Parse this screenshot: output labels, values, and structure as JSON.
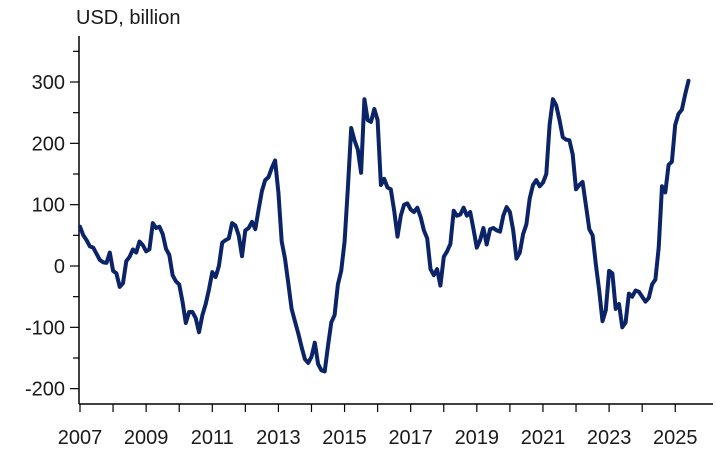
{
  "chart_data": {
    "type": "line",
    "ylabel": "USD, billion",
    "xlabel": "",
    "xlim": [
      2007.0,
      2025.9
    ],
    "ylim": [
      -225,
      375
    ],
    "xticks": [
      2007,
      2009,
      2011,
      2013,
      2015,
      2017,
      2019,
      2021,
      2023,
      2025
    ],
    "xtick_labels": [
      "2007",
      "2009",
      "2011",
      "2013",
      "2015",
      "2017",
      "2019",
      "2021",
      "2023",
      "2025"
    ],
    "yticks": [
      -200,
      -100,
      0,
      100,
      200,
      300
    ],
    "ytick_labels": [
      "-200",
      "-100",
      "0",
      "100",
      "200",
      "300"
    ],
    "grid": false,
    "line_color": "#0b2468",
    "series": [
      {
        "name": "",
        "points": [
          [
            2007.0,
            64
          ],
          [
            2007.1,
            50
          ],
          [
            2007.2,
            42
          ],
          [
            2007.3,
            32
          ],
          [
            2007.4,
            30
          ],
          [
            2007.5,
            20
          ],
          [
            2007.6,
            10
          ],
          [
            2007.7,
            6
          ],
          [
            2007.8,
            5
          ],
          [
            2007.9,
            22
          ],
          [
            2008.0,
            -8
          ],
          [
            2008.1,
            -12
          ],
          [
            2008.2,
            -34
          ],
          [
            2008.3,
            -28
          ],
          [
            2008.4,
            8
          ],
          [
            2008.5,
            15
          ],
          [
            2008.6,
            27
          ],
          [
            2008.7,
            22
          ],
          [
            2008.8,
            40
          ],
          [
            2008.9,
            34
          ],
          [
            2009.0,
            24
          ],
          [
            2009.1,
            27
          ],
          [
            2009.2,
            70
          ],
          [
            2009.3,
            62
          ],
          [
            2009.4,
            64
          ],
          [
            2009.5,
            52
          ],
          [
            2009.6,
            28
          ],
          [
            2009.7,
            18
          ],
          [
            2009.8,
            -15
          ],
          [
            2009.9,
            -25
          ],
          [
            2010.0,
            -30
          ],
          [
            2010.1,
            -58
          ],
          [
            2010.2,
            -93
          ],
          [
            2010.3,
            -75
          ],
          [
            2010.4,
            -75
          ],
          [
            2010.5,
            -85
          ],
          [
            2010.6,
            -108
          ],
          [
            2010.7,
            -80
          ],
          [
            2010.8,
            -62
          ],
          [
            2010.9,
            -38
          ],
          [
            2011.0,
            -10
          ],
          [
            2011.1,
            -18
          ],
          [
            2011.2,
            0
          ],
          [
            2011.3,
            38
          ],
          [
            2011.4,
            42
          ],
          [
            2011.5,
            45
          ],
          [
            2011.6,
            70
          ],
          [
            2011.7,
            66
          ],
          [
            2011.8,
            50
          ],
          [
            2011.9,
            16
          ],
          [
            2012.0,
            58
          ],
          [
            2012.1,
            62
          ],
          [
            2012.2,
            72
          ],
          [
            2012.3,
            60
          ],
          [
            2012.4,
            92
          ],
          [
            2012.5,
            122
          ],
          [
            2012.6,
            140
          ],
          [
            2012.7,
            145
          ],
          [
            2012.8,
            160
          ],
          [
            2012.9,
            172
          ],
          [
            2013.0,
            120
          ],
          [
            2013.1,
            40
          ],
          [
            2013.2,
            12
          ],
          [
            2013.3,
            -28
          ],
          [
            2013.4,
            -70
          ],
          [
            2013.5,
            -90
          ],
          [
            2013.6,
            -110
          ],
          [
            2013.7,
            -132
          ],
          [
            2013.8,
            -152
          ],
          [
            2013.9,
            -158
          ],
          [
            2014.0,
            -148
          ],
          [
            2014.1,
            -125
          ],
          [
            2014.2,
            -160
          ],
          [
            2014.3,
            -170
          ],
          [
            2014.4,
            -172
          ],
          [
            2014.5,
            -130
          ],
          [
            2014.6,
            -92
          ],
          [
            2014.7,
            -80
          ],
          [
            2014.8,
            -30
          ],
          [
            2014.9,
            -8
          ],
          [
            2015.0,
            40
          ],
          [
            2015.1,
            128
          ],
          [
            2015.2,
            225
          ],
          [
            2015.3,
            205
          ],
          [
            2015.4,
            190
          ],
          [
            2015.5,
            152
          ],
          [
            2015.6,
            272
          ],
          [
            2015.7,
            238
          ],
          [
            2015.8,
            235
          ],
          [
            2015.9,
            256
          ],
          [
            2016.0,
            238
          ],
          [
            2016.1,
            132
          ],
          [
            2016.2,
            142
          ],
          [
            2016.3,
            128
          ],
          [
            2016.4,
            125
          ],
          [
            2016.5,
            90
          ],
          [
            2016.6,
            48
          ],
          [
            2016.7,
            82
          ],
          [
            2016.8,
            100
          ],
          [
            2016.9,
            102
          ],
          [
            2017.0,
            92
          ],
          [
            2017.1,
            88
          ],
          [
            2017.2,
            95
          ],
          [
            2017.3,
            80
          ],
          [
            2017.4,
            58
          ],
          [
            2017.5,
            45
          ],
          [
            2017.6,
            -5
          ],
          [
            2017.7,
            -15
          ],
          [
            2017.8,
            -5
          ],
          [
            2017.9,
            -32
          ],
          [
            2018.0,
            15
          ],
          [
            2018.1,
            24
          ],
          [
            2018.2,
            36
          ],
          [
            2018.3,
            90
          ],
          [
            2018.4,
            82
          ],
          [
            2018.5,
            84
          ],
          [
            2018.6,
            95
          ],
          [
            2018.7,
            82
          ],
          [
            2018.8,
            88
          ],
          [
            2018.9,
            60
          ],
          [
            2019.0,
            30
          ],
          [
            2019.1,
            42
          ],
          [
            2019.2,
            62
          ],
          [
            2019.3,
            35
          ],
          [
            2019.4,
            60
          ],
          [
            2019.5,
            62
          ],
          [
            2019.6,
            58
          ],
          [
            2019.7,
            56
          ],
          [
            2019.8,
            82
          ],
          [
            2019.9,
            96
          ],
          [
            2020.0,
            88
          ],
          [
            2020.1,
            58
          ],
          [
            2020.2,
            12
          ],
          [
            2020.3,
            22
          ],
          [
            2020.4,
            52
          ],
          [
            2020.5,
            68
          ],
          [
            2020.6,
            110
          ],
          [
            2020.7,
            132
          ],
          [
            2020.8,
            140
          ],
          [
            2020.9,
            130
          ],
          [
            2021.0,
            136
          ],
          [
            2021.1,
            150
          ],
          [
            2021.2,
            230
          ],
          [
            2021.3,
            272
          ],
          [
            2021.4,
            262
          ],
          [
            2021.5,
            238
          ],
          [
            2021.6,
            210
          ],
          [
            2021.7,
            206
          ],
          [
            2021.8,
            205
          ],
          [
            2021.9,
            182
          ],
          [
            2022.0,
            125
          ],
          [
            2022.1,
            132
          ],
          [
            2022.2,
            137
          ],
          [
            2022.3,
            98
          ],
          [
            2022.4,
            60
          ],
          [
            2022.5,
            50
          ],
          [
            2022.6,
            2
          ],
          [
            2022.7,
            -40
          ],
          [
            2022.8,
            -90
          ],
          [
            2022.9,
            -72
          ],
          [
            2023.0,
            -8
          ],
          [
            2023.1,
            -12
          ],
          [
            2023.2,
            -70
          ],
          [
            2023.3,
            -62
          ],
          [
            2023.4,
            -100
          ],
          [
            2023.5,
            -92
          ],
          [
            2023.6,
            -45
          ],
          [
            2023.7,
            -50
          ],
          [
            2023.8,
            -40
          ],
          [
            2023.9,
            -42
          ],
          [
            2024.0,
            -50
          ],
          [
            2024.1,
            -58
          ],
          [
            2024.2,
            -52
          ],
          [
            2024.3,
            -30
          ],
          [
            2024.4,
            -22
          ],
          [
            2024.5,
            30
          ],
          [
            2024.6,
            130
          ],
          [
            2024.7,
            120
          ],
          [
            2024.8,
            165
          ],
          [
            2024.9,
            170
          ],
          [
            2025.0,
            230
          ],
          [
            2025.1,
            248
          ],
          [
            2025.2,
            255
          ],
          [
            2025.3,
            280
          ],
          [
            2025.4,
            302
          ]
        ]
      }
    ]
  }
}
